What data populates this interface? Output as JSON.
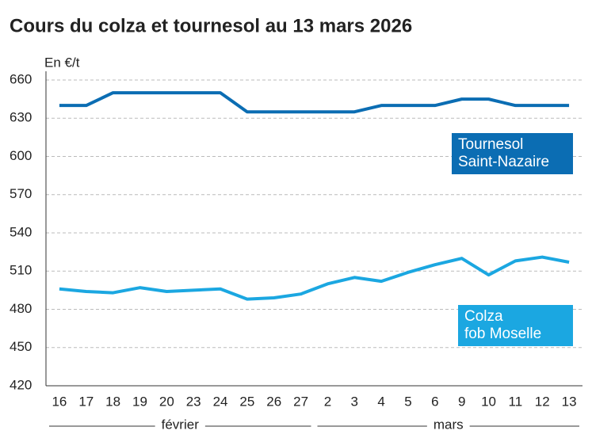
{
  "chart_data": {
    "type": "line",
    "title": "Cours du colza et tournesol au 13 mars 2026",
    "y_label": "En €/t",
    "categories": [
      "16",
      "17",
      "18",
      "19",
      "20",
      "23",
      "24",
      "25",
      "26",
      "27",
      "2",
      "3",
      "4",
      "5",
      "6",
      "9",
      "10",
      "11",
      "12",
      "13"
    ],
    "groups": [
      {
        "label": "février",
        "count": 10
      },
      {
        "label": "mars",
        "count": 10
      }
    ],
    "series": [
      {
        "name": "Tournesol\nSaint-Nazaire",
        "color": "#0b6db3",
        "values": [
          640,
          640,
          650,
          650,
          650,
          650,
          650,
          635,
          635,
          635,
          635,
          635,
          640,
          640,
          640,
          645,
          645,
          640,
          640,
          640
        ]
      },
      {
        "name": "Colza\nfob Moselle",
        "color": "#1ba7e1",
        "values": [
          496,
          494,
          493,
          497,
          494,
          495,
          496,
          488,
          489,
          492,
          500,
          505,
          502,
          509,
          515,
          520,
          507,
          518,
          521,
          517
        ]
      }
    ],
    "ylim": [
      420,
      660
    ],
    "yticks": [
      420,
      450,
      480,
      510,
      540,
      570,
      600,
      630,
      660
    ],
    "grid": true
  }
}
